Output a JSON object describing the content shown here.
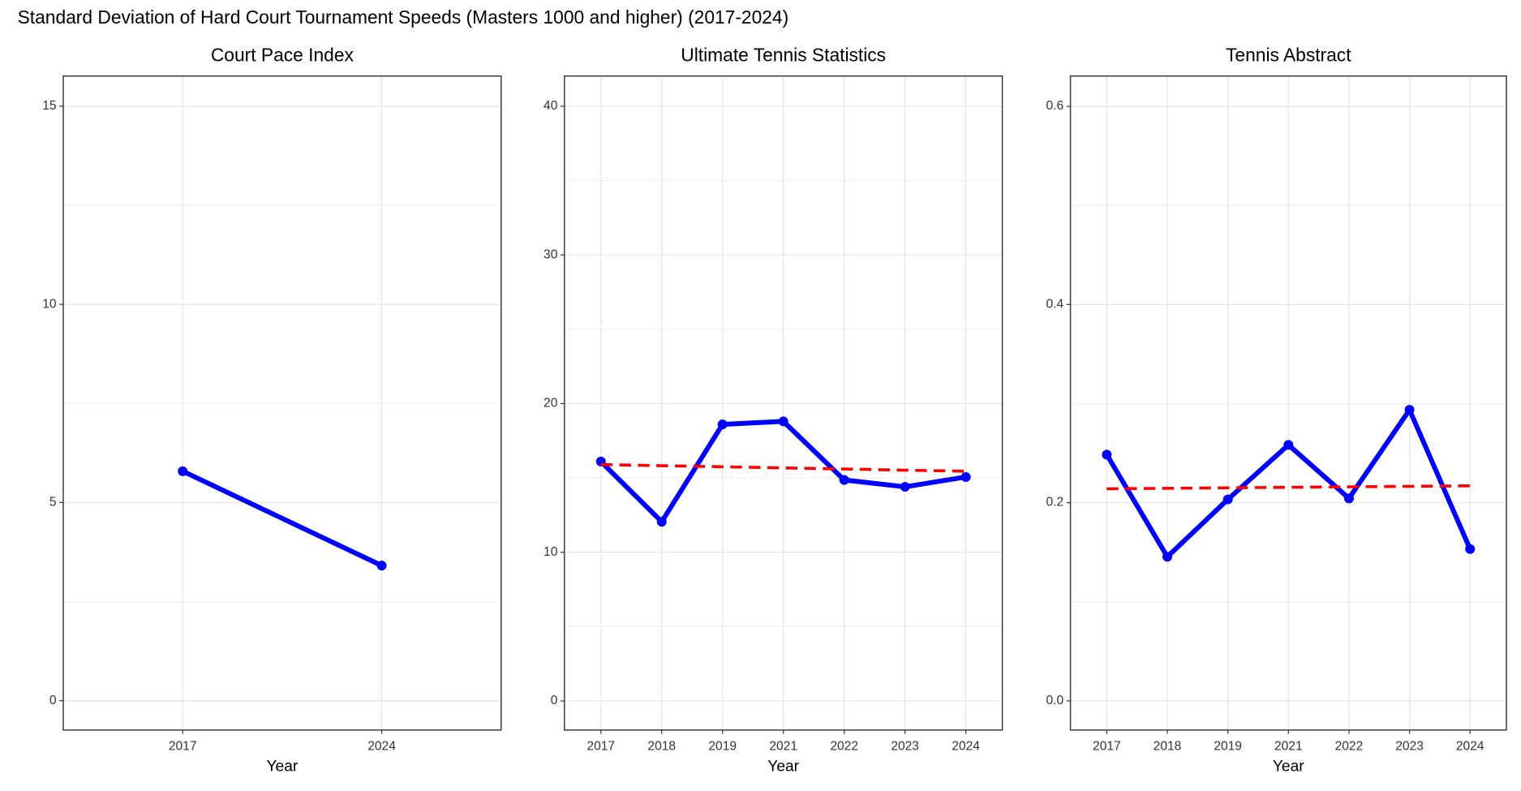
{
  "title": "Standard Deviation of Hard Court Tournament Speeds (Masters 1000 and higher) (2017-2024)",
  "chart_data": [
    {
      "type": "line",
      "title": "Court Pace Index",
      "x_label": "Year",
      "categories": [
        "2017",
        "2024"
      ],
      "series": [
        {
          "color": "#0000ff",
          "markers": true,
          "values": [
            5.79,
            3.41
          ]
        }
      ],
      "ylim": [
        -0.74,
        15.76
      ],
      "yticks": [
        0,
        5,
        10,
        15
      ],
      "grid": true
    },
    {
      "type": "line",
      "title": "Ultimate Tennis Statistics",
      "x_label": "Year",
      "categories": [
        "2017",
        "2018",
        "2019",
        "2021",
        "2022",
        "2023",
        "2024"
      ],
      "series": [
        {
          "color": "#0000ff",
          "markers": true,
          "values": [
            16.1,
            12.05,
            18.6,
            18.8,
            14.86,
            14.4,
            15.06
          ]
        },
        {
          "color": "#ff0000",
          "dashed": true,
          "values": [
            15.9,
            15.82,
            15.75,
            15.67,
            15.6,
            15.52,
            15.45
          ]
        }
      ],
      "ylim": [
        -1.96,
        42.03
      ],
      "yticks": [
        0,
        10,
        20,
        30,
        40
      ],
      "grid": true
    },
    {
      "type": "line",
      "title": "Tennis Abstract",
      "x_label": "Year",
      "categories": [
        "2017",
        "2018",
        "2019",
        "2021",
        "2022",
        "2023",
        "2024"
      ],
      "series": [
        {
          "color": "#0000ff",
          "markers": true,
          "values": [
            0.2485,
            0.1454,
            0.2033,
            0.2583,
            0.2043,
            0.2937,
            0.1532
          ]
        },
        {
          "color": "#ff0000",
          "dashed": true,
          "values": [
            0.214,
            0.2145,
            0.215,
            0.2155,
            0.216,
            0.2165,
            0.217
          ]
        }
      ],
      "ylim": [
        -0.0295,
        0.6306
      ],
      "yticks": [
        {
          "value": 0,
          "label": "0.0"
        },
        0.2,
        0.4,
        0.6
      ],
      "grid": true
    }
  ]
}
